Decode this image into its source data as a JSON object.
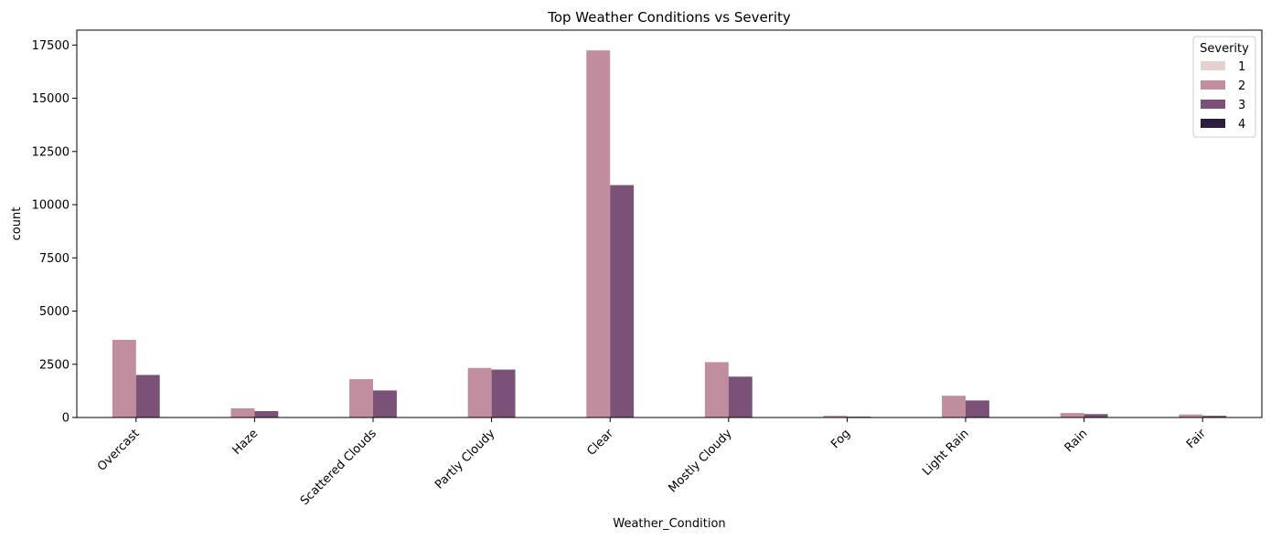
{
  "chart_data": {
    "type": "bar",
    "title": "Top Weather Conditions vs Severity",
    "xlabel": "Weather_Condition",
    "ylabel": "count",
    "ylim": [
      0,
      18200
    ],
    "yticks": [
      0,
      2500,
      5000,
      7500,
      10000,
      12500,
      15000,
      17500
    ],
    "grid": false,
    "categories": [
      "Overcast",
      "Haze",
      "Scattered Clouds",
      "Partly Cloudy",
      "Clear",
      "Mostly Cloudy",
      "Fog",
      "Light Rain",
      "Rain",
      "Fair"
    ],
    "legend": {
      "title": "Severity",
      "placement": "top-right"
    },
    "series": [
      {
        "name": "1",
        "color": "#e6d0d0",
        "values": [
          0,
          0,
          0,
          0,
          20,
          0,
          0,
          0,
          0,
          0
        ]
      },
      {
        "name": "2",
        "color": "#c08e9e",
        "values": [
          3650,
          430,
          1800,
          2330,
          17250,
          2600,
          80,
          1020,
          210,
          140
        ]
      },
      {
        "name": "3",
        "color": "#7a5177",
        "values": [
          2000,
          300,
          1270,
          2250,
          10920,
          1920,
          40,
          800,
          160,
          80
        ]
      },
      {
        "name": "4",
        "color": "#2d1e3e",
        "values": [
          0,
          0,
          0,
          0,
          0,
          0,
          0,
          0,
          0,
          0
        ]
      }
    ]
  }
}
